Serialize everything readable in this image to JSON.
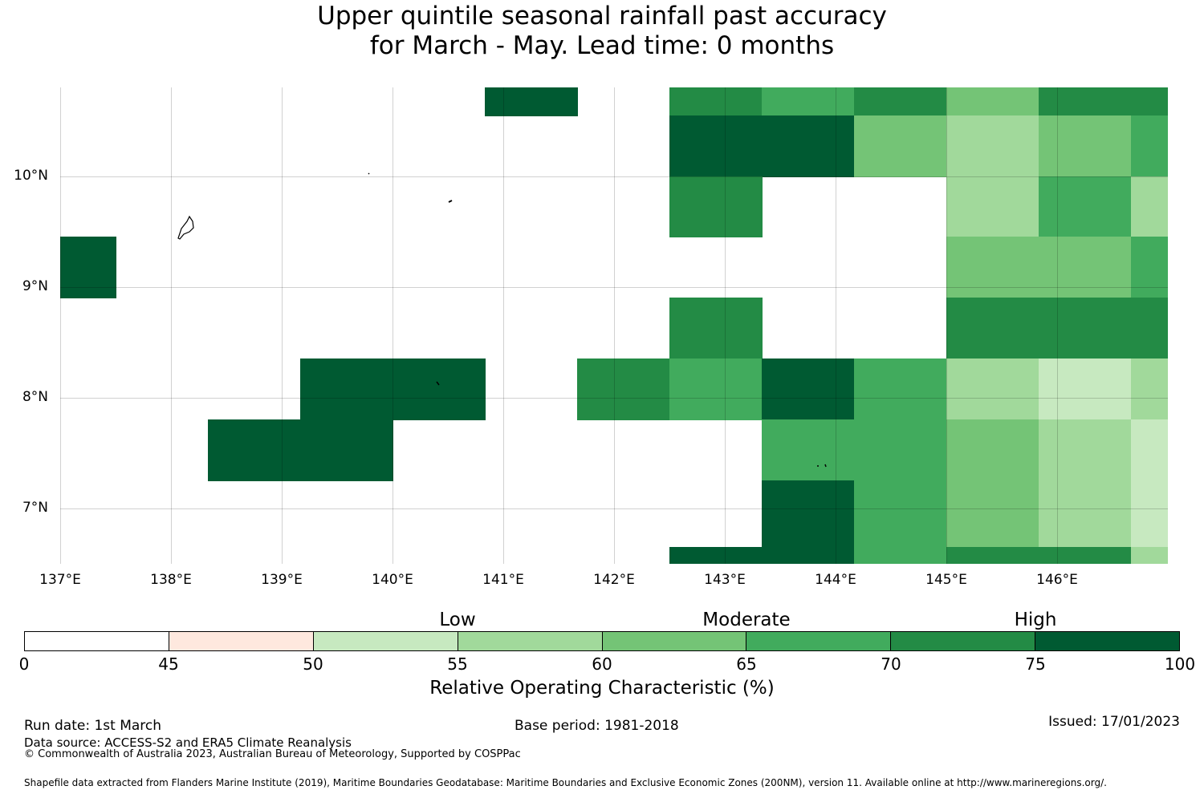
{
  "title": {
    "line1": "Upper quintile seasonal rainfall past accuracy",
    "line2": "for March - May. Lead time: 0 months"
  },
  "axes": {
    "lon_min": 137,
    "lon_max": 147,
    "lat_min": 6.5,
    "lat_max": 10.8,
    "lat_ticks": [
      {
        "value": 10,
        "label": "10°N"
      },
      {
        "value": 9,
        "label": "9°N"
      },
      {
        "value": 8,
        "label": "8°N"
      },
      {
        "value": 7,
        "label": "7°N"
      }
    ],
    "lon_ticks": [
      {
        "value": 137,
        "label": "137°E"
      },
      {
        "value": 138,
        "label": "138°E"
      },
      {
        "value": 139,
        "label": "139°E"
      },
      {
        "value": 140,
        "label": "140°E"
      },
      {
        "value": 141,
        "label": "141°E"
      },
      {
        "value": 142,
        "label": "142°E"
      },
      {
        "value": 143,
        "label": "143°E"
      },
      {
        "value": 144,
        "label": "144°E"
      },
      {
        "value": 145,
        "label": "145°E"
      },
      {
        "value": 146,
        "label": "146°E"
      }
    ]
  },
  "grid": {
    "lon_edges": [
      137.0,
      137.5,
      138.33,
      139.17,
      140.0,
      140.83,
      141.67,
      142.5,
      143.33,
      144.17,
      145.0,
      145.83,
      146.67,
      147.0
    ],
    "lat_edges": [
      10.8,
      10.55,
      10.0,
      9.45,
      8.9,
      8.35,
      7.8,
      7.25,
      6.5
    ],
    "class_rows": [
      [
        8,
        8,
        8,
        8,
        8,
        7,
        8,
        6,
        5,
        6,
        4,
        6,
        6
      ],
      [
        8,
        8,
        8,
        8,
        8,
        8,
        8,
        7,
        7,
        4,
        3,
        4,
        5
      ],
      [
        8,
        8,
        8,
        8,
        8,
        8,
        8,
        6,
        8,
        8,
        3,
        5,
        3
      ],
      [
        7,
        8,
        8,
        8,
        8,
        8,
        8,
        8,
        8,
        8,
        4,
        4,
        5
      ],
      [
        8,
        8,
        8,
        8,
        8,
        8,
        8,
        6,
        8,
        8,
        6,
        6,
        6
      ],
      [
        8,
        8,
        8,
        7,
        7,
        8,
        6,
        5,
        7,
        5,
        3,
        2,
        3
      ],
      [
        8,
        8,
        7,
        7,
        8,
        8,
        8,
        8,
        5,
        5,
        4,
        3,
        2
      ],
      [
        8,
        8,
        8,
        8,
        8,
        8,
        8,
        8,
        7,
        5,
        4,
        3,
        2
      ]
    ],
    "bottom_strip": {
      "lat_top": 6.65,
      "classes": [
        8,
        8,
        8,
        8,
        8,
        8,
        8,
        7,
        7,
        5,
        6,
        6,
        3
      ]
    }
  },
  "colorbar": {
    "bounds": [
      0,
      45,
      50,
      55,
      60,
      65,
      70,
      75,
      100
    ],
    "colors": [
      "#ffffff",
      "#fee8de",
      "#c7e9c0",
      "#a1d99b",
      "#74c476",
      "#41ab5d",
      "#238b45",
      "#005a32"
    ],
    "tick_labels": [
      "0",
      "45",
      "50",
      "55",
      "60",
      "65",
      "70",
      "75",
      "100"
    ],
    "categories": [
      {
        "label": "Low",
        "at": 55
      },
      {
        "label": "Moderate",
        "at": 65
      },
      {
        "label": "High",
        "at": 75
      }
    ],
    "label": "Relative Operating Characteristic (%)"
  },
  "footer": {
    "run_date": "Run date: 1st March",
    "base_period": "Base period: 1981-2018",
    "issued": "Issued: 17/01/2023",
    "data_source": "Data source: ACCESS-S2 and ERA5 Climate Reanalysis",
    "copyright": "© Commonwealth of Australia 2023, Australian Bureau of Meteorology, Supported by COSPPac",
    "shapefile": "Shapefile data extracted from Flanders Marine Institute (2019), Maritime Boundaries Geodatabase: Maritime Boundaries and Exclusive Economic Zones (200NM), version 11. Available online at http://www.marineregions.org/."
  }
}
